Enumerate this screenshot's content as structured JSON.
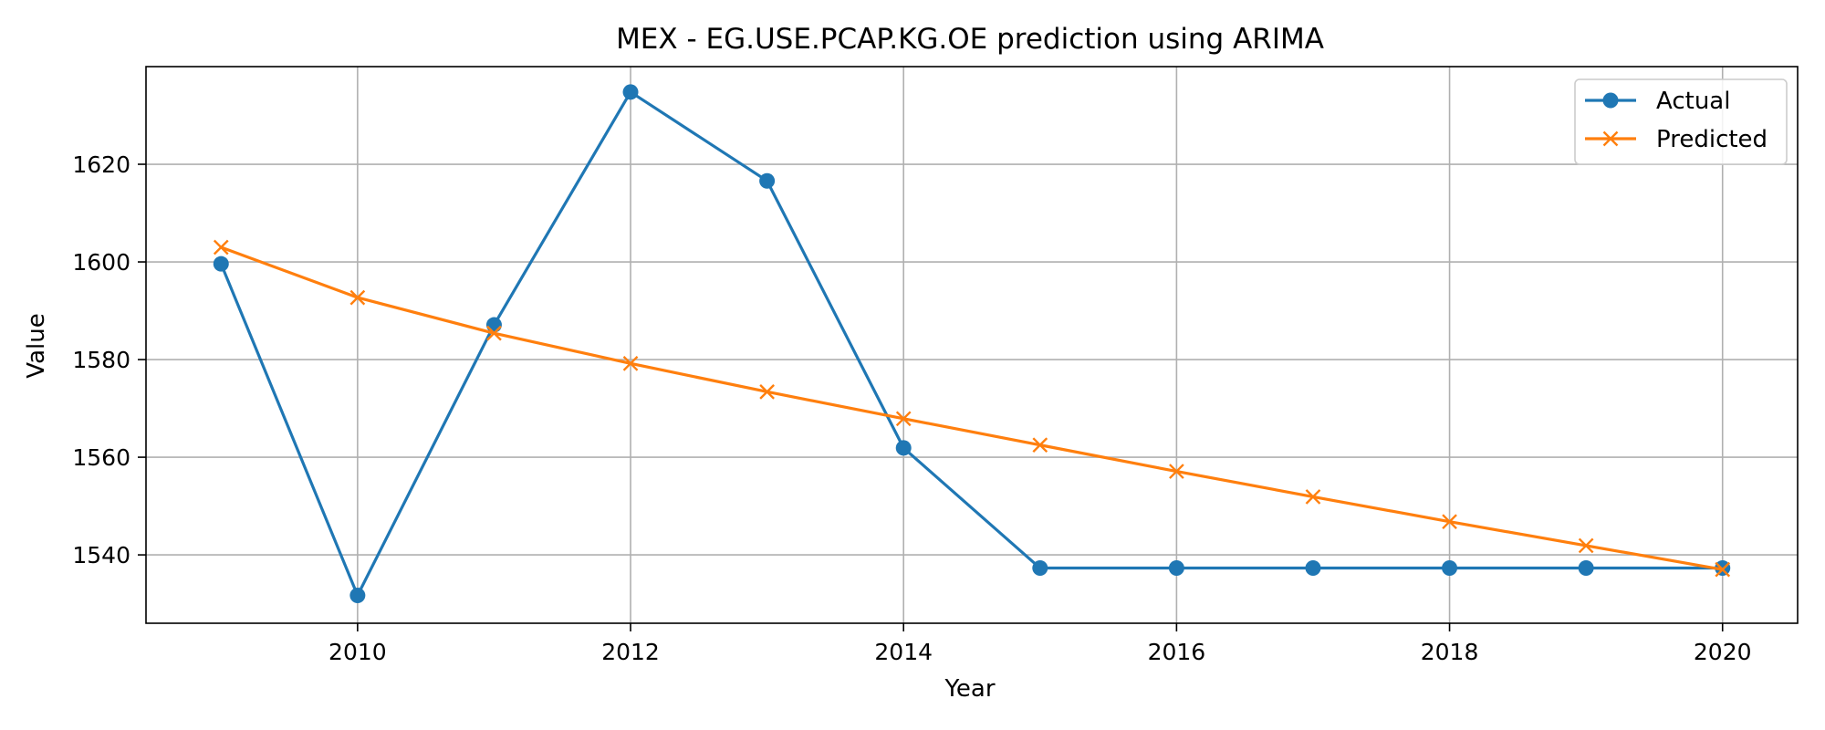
{
  "chart_data": {
    "type": "line",
    "title": "MEX - EG.USE.PCAP.KG.OE prediction using ARIMA",
    "xlabel": "Year",
    "ylabel": "Value",
    "x": [
      2009,
      2010,
      2011,
      2012,
      2013,
      2014,
      2015,
      2016,
      2017,
      2018,
      2019,
      2020
    ],
    "xlim": [
      2008.45,
      2020.55
    ],
    "ylim": [
      1526.0,
      1640.0
    ],
    "xticks": [
      2010,
      2012,
      2014,
      2016,
      2018,
      2020
    ],
    "yticks": [
      1540,
      1560,
      1580,
      1600,
      1620
    ],
    "grid": true,
    "legend_position": "top-right",
    "series": [
      {
        "name": "Actual",
        "color": "#1f77b4",
        "marker": "circle",
        "values": [
          1599.6,
          1531.7,
          1587.1,
          1634.8,
          1616.6,
          1561.9,
          1537.3,
          1537.3,
          1537.3,
          1537.3,
          1537.3,
          1537.3
        ]
      },
      {
        "name": "Predicted",
        "color": "#ff7f0e",
        "marker": "x",
        "values": [
          1603.0,
          1592.7,
          1585.4,
          1579.2,
          1573.4,
          1567.9,
          1562.5,
          1557.1,
          1551.9,
          1546.8,
          1541.9,
          1537.0
        ]
      }
    ]
  }
}
